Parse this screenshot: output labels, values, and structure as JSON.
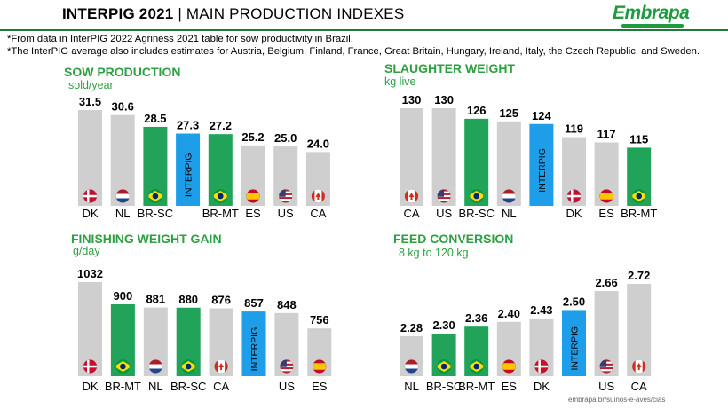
{
  "header": {
    "title_bold": "INTERPIG 2021",
    "title_rest": " | MAIN PRODUCTION INDEXES",
    "logo": "Embrapa",
    "note1": "*From data in InterPIG 2022 Agriness 2021 table for sow productivity in Brazil.",
    "note2": "*The InterPIG average also includes estimates for Austria, Belgium, Finland, France, Great Britain, Hungary, Ireland, Italy, the Czech Republic, and Sweden."
  },
  "footer": {
    "source": "embrapa.br/suinos-e-aves/cias"
  },
  "colors": {
    "gray": "#cfcfcf",
    "green": "#21a35a",
    "blue": "#1e9ee8",
    "title_green": "#2ea043"
  },
  "chart_data": [
    {
      "type": "bar",
      "title": "SOW PRODUCTION",
      "subtitle": "sold/year",
      "categories": [
        "DK",
        "NL",
        "BR-SC",
        "",
        "BR-MT",
        "ES",
        "US",
        "CA"
      ],
      "inner_labels": [
        "",
        "",
        "",
        "INTERPIG",
        "",
        "",
        "",
        ""
      ],
      "values": [
        31.5,
        30.6,
        28.5,
        27.3,
        27.2,
        25.2,
        25.0,
        24.0
      ],
      "value_labels": [
        "31.5",
        "30.6",
        "28.5",
        "27.3",
        "27.2",
        "25.2",
        "25.0",
        "24.0"
      ],
      "bar_colors": [
        "gray",
        "gray",
        "green",
        "blue",
        "green",
        "gray",
        "gray",
        "gray"
      ],
      "flags": [
        "dk-flag-icon",
        "nl-flag-icon",
        "br-flag-icon",
        "",
        "br-flag-icon",
        "es-flag-icon",
        "us-flag-icon",
        "ca-flag-icon"
      ],
      "ylim": [
        0,
        31.5
      ]
    },
    {
      "type": "bar",
      "title": "SLAUGHTER WEIGHT",
      "subtitle": "kg live",
      "categories": [
        "CA",
        "US",
        "BR-SC",
        "NL",
        "",
        "DK",
        "ES",
        "BR-MT"
      ],
      "inner_labels": [
        "",
        "",
        "",
        "",
        "INTERPIG",
        "",
        "",
        ""
      ],
      "values": [
        130,
        130,
        126,
        125,
        124,
        119,
        117,
        115
      ],
      "value_labels": [
        "130",
        "130",
        "126",
        "125",
        "124",
        "119",
        "117",
        "115"
      ],
      "bar_colors": [
        "gray",
        "gray",
        "green",
        "gray",
        "blue",
        "gray",
        "gray",
        "green"
      ],
      "flags": [
        "ca-flag-icon",
        "us-flag-icon",
        "br-flag-icon",
        "nl-flag-icon",
        "",
        "dk-flag-icon",
        "es-flag-icon",
        "br-flag-icon"
      ],
      "ylim": [
        0,
        130
      ]
    },
    {
      "type": "bar",
      "title": "FINISHING WEIGHT GAIN",
      "subtitle": "g/day",
      "categories": [
        "DK",
        "BR-MT",
        "NL",
        "BR-SC",
        "CA",
        "",
        "US",
        "ES"
      ],
      "inner_labels": [
        "",
        "",
        "",
        "",
        "",
        "INTERPIG",
        "",
        ""
      ],
      "values": [
        1032,
        900,
        881,
        880,
        876,
        857,
        848,
        756
      ],
      "value_labels": [
        "1032",
        "900",
        "881",
        "880",
        "876",
        "857",
        "848",
        "756"
      ],
      "bar_colors": [
        "gray",
        "green",
        "gray",
        "green",
        "gray",
        "blue",
        "gray",
        "gray"
      ],
      "flags": [
        "dk-flag-icon",
        "br-flag-icon",
        "nl-flag-icon",
        "br-flag-icon",
        "ca-flag-icon",
        "",
        "us-flag-icon",
        "es-flag-icon"
      ],
      "ylim": [
        0,
        1032
      ]
    },
    {
      "type": "bar",
      "title": "FEED CONVERSION",
      "subtitle": "8 kg to 120 kg",
      "categories": [
        "NL",
        "BR-SC",
        "BR-MT",
        "ES",
        "DK",
        "",
        "US",
        "CA"
      ],
      "inner_labels": [
        "",
        "",
        "",
        "",
        "",
        "INTERPIG",
        "",
        ""
      ],
      "values": [
        2.28,
        2.3,
        2.36,
        2.4,
        2.43,
        2.5,
        2.66,
        2.72
      ],
      "value_labels": [
        "2.28",
        "2.30",
        "2.36",
        "2.40",
        "2.43",
        "2.50",
        "2.66",
        "2.72"
      ],
      "bar_colors": [
        "gray",
        "green",
        "green",
        "gray",
        "gray",
        "blue",
        "gray",
        "gray"
      ],
      "flags": [
        "nl-flag-icon",
        "br-flag-icon",
        "br-flag-icon",
        "es-flag-icon",
        "dk-flag-icon",
        "",
        "us-flag-icon",
        "ca-flag-icon"
      ],
      "ylim": [
        0,
        2.72
      ]
    }
  ]
}
